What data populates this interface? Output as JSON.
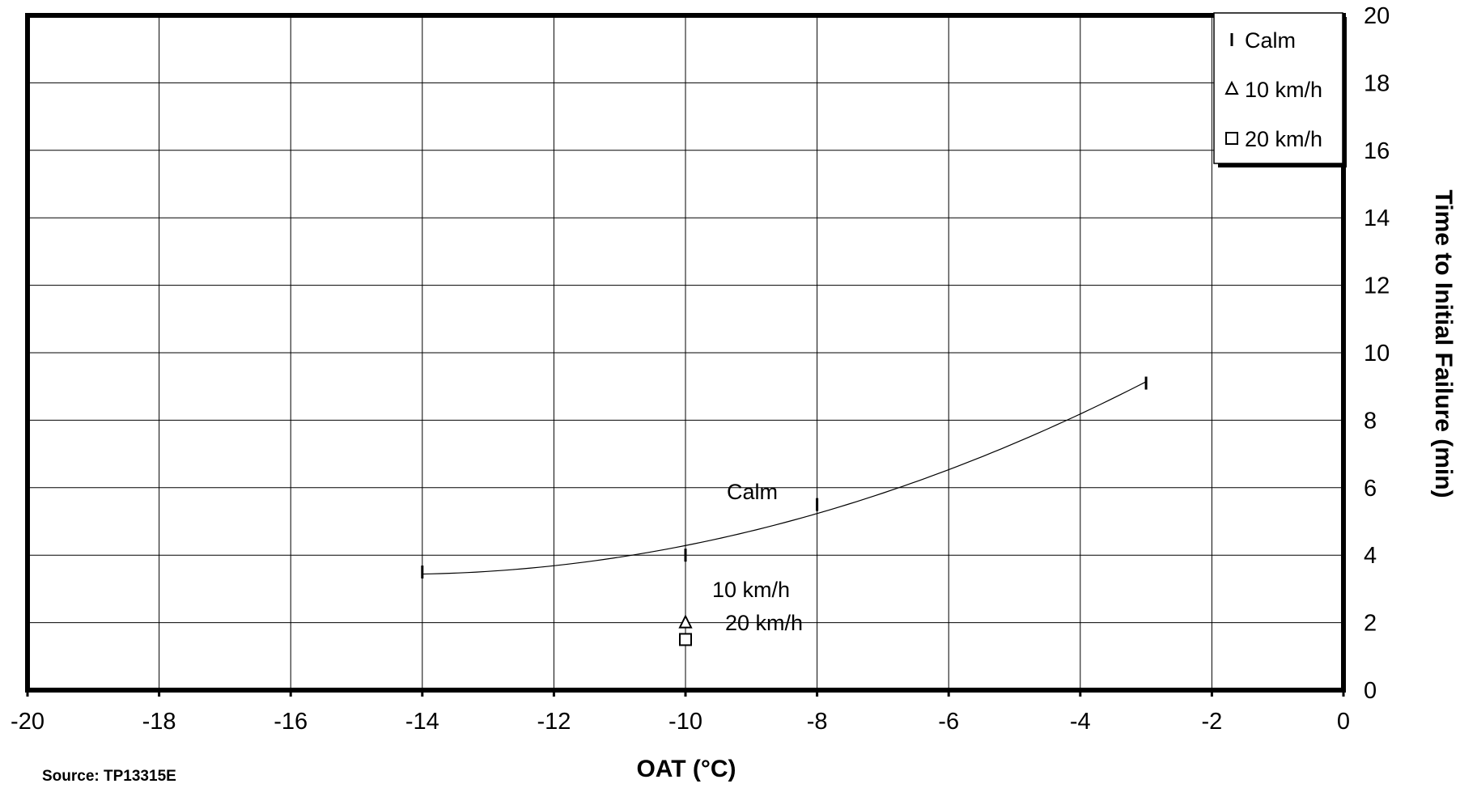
{
  "chart_data": {
    "type": "scatter",
    "xlabel": "OAT (°C)",
    "ylabel": "Time to Initial Failure (min)",
    "xlim": [
      -20,
      0
    ],
    "ylim": [
      0,
      20
    ],
    "x_ticks": [
      -20,
      -18,
      -16,
      -14,
      -12,
      -10,
      -8,
      -6,
      -4,
      -2,
      0
    ],
    "y_ticks": [
      0,
      2,
      4,
      6,
      8,
      10,
      12,
      14,
      16,
      18,
      20
    ],
    "x_tick_labels": [
      "-20",
      "-18",
      "-16",
      "-14",
      "-12",
      "-10",
      "-8",
      "-6",
      "-4",
      "-2",
      "0"
    ],
    "y_tick_labels": [
      "0",
      "2",
      "4",
      "6",
      "8",
      "10",
      "12",
      "14",
      "16",
      "18",
      "20"
    ],
    "y_axis_side": "right",
    "grid": true,
    "legend_position": "top-right",
    "series": [
      {
        "name": "Calm",
        "marker": "dash",
        "points": [
          {
            "x": -14,
            "y": 3.5
          },
          {
            "x": -10,
            "y": 4.0
          },
          {
            "x": -8,
            "y": 5.5
          },
          {
            "x": -3,
            "y": 9.1
          }
        ],
        "trendline": {
          "type": "quadratic",
          "x_range": [
            -14,
            -3
          ],
          "label": "Calm"
        }
      },
      {
        "name": "10 km/h",
        "marker": "triangle",
        "points": [
          {
            "x": -10,
            "y": 2.0
          }
        ],
        "label": "10 km/h"
      },
      {
        "name": "20 km/h",
        "marker": "square",
        "points": [
          {
            "x": -10,
            "y": 1.5
          }
        ],
        "label": "20 km/h"
      }
    ]
  },
  "footer": {
    "source": "Source: TP13315E"
  }
}
